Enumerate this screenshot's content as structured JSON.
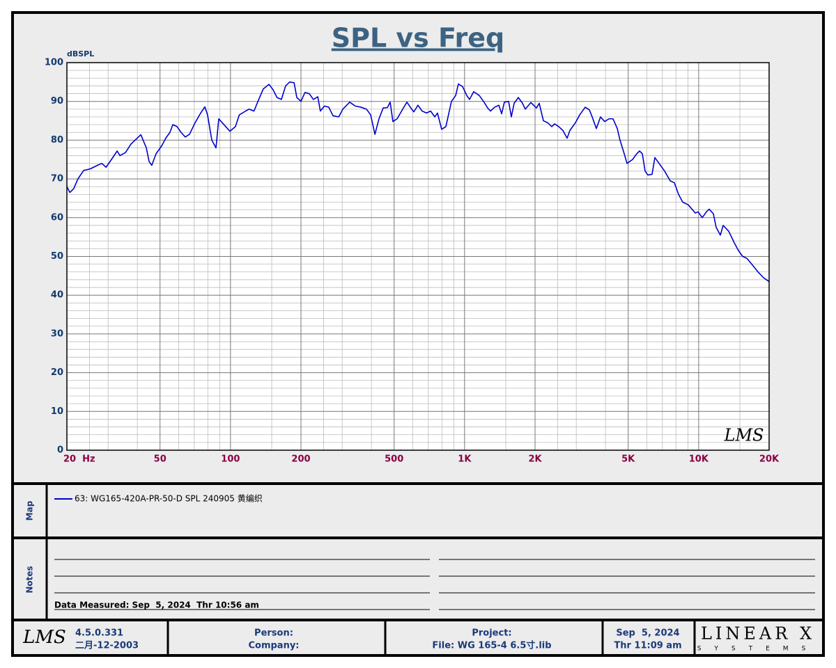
{
  "chart_data": {
    "type": "line",
    "title": "SPL vs Freq",
    "y_unit": "dBSPL",
    "watermark": "LMS",
    "xscale": "log",
    "xlim": [
      20,
      20000
    ],
    "ylim": [
      0,
      100
    ],
    "grid": true,
    "xticks": [
      {
        "value": 20,
        "label": "20  Hz"
      },
      50,
      100,
      200,
      500,
      {
        "value": 1000,
        "label": "1K"
      },
      {
        "value": 2000,
        "label": "2K"
      },
      {
        "value": 5000,
        "label": "5K"
      },
      {
        "value": 10000,
        "label": "10K"
      },
      {
        "value": 20000,
        "label": "20K"
      }
    ],
    "yticks": [
      0,
      10,
      20,
      30,
      40,
      50,
      60,
      70,
      80,
      90,
      100
    ],
    "x_minor_grid": [
      25,
      30,
      40,
      60,
      70,
      80,
      90,
      150,
      250,
      300,
      400,
      600,
      700,
      800,
      900,
      1500,
      2500,
      3000,
      4000,
      6000,
      7000,
      8000,
      9000,
      15000
    ],
    "y_minor_grid": [
      2,
      4,
      6,
      8,
      12,
      14,
      16,
      18,
      22,
      24,
      26,
      28,
      32,
      34,
      36,
      38,
      42,
      44,
      46,
      48,
      52,
      54,
      56,
      58,
      62,
      64,
      66,
      68,
      72,
      74,
      76,
      78,
      82,
      84,
      86,
      88,
      92,
      94,
      96,
      98
    ],
    "x": [
      20,
      20.6,
      21.4,
      22.3,
      23.6,
      25.2,
      27.0,
      28.2,
      29.4,
      31.0,
      32.8,
      33.7,
      35.6,
      37.6,
      39.1,
      41.4,
      43.7,
      44.9,
      46.1,
      48.1,
      50.8,
      52.9,
      55.1,
      56.7,
      59.1,
      61.5,
      64.1,
      66.8,
      70.6,
      74.6,
      77.7,
      79.8,
      83.2,
      86.7,
      89.1,
      92.8,
      99.4,
      105,
      109,
      116,
      120,
      126,
      131,
      138,
      146,
      152,
      158,
      165,
      172,
      179,
      187,
      192,
      200,
      208,
      217,
      226,
      236,
      242,
      252,
      263,
      274,
      290,
      302,
      323,
      341,
      361,
      381,
      397,
      414,
      431,
      449,
      468,
      481,
      494,
      515,
      544,
      567,
      591,
      607,
      632,
      659,
      687,
      716,
      746,
      766,
      798,
      832,
      879,
      916,
      941,
      981,
      1022,
      1050,
      1094,
      1156,
      1205,
      1255,
      1290,
      1344,
      1401,
      1440,
      1479,
      1542,
      1584,
      1628,
      1697,
      1768,
      1817,
      1920,
      2028,
      2084,
      2172,
      2263,
      2358,
      2424,
      2524,
      2630,
      2742,
      2818,
      2976,
      3102,
      3276,
      3414,
      3508,
      3656,
      3808,
      3968,
      4136,
      4308,
      4490,
      4614,
      4808,
      4942,
      5220,
      5440,
      5590,
      5746,
      5906,
      6070,
      6324,
      6500,
      6774,
      7156,
      7558,
      7876,
      8206,
      8550,
      9034,
      9674,
      9942,
      10360,
      10794,
      11094,
      11560,
      11880,
      12380,
      12724,
      13440,
      14200,
      14794,
      15416,
      16062,
      16968,
      17924,
      18934,
      20000
    ],
    "series": [
      {
        "name": "63: WG165-420A-PR-50-D SPL 240905 黄编织",
        "color": "#0000cc",
        "values": [
          68,
          66.5,
          67.5,
          70,
          72.2,
          72.6,
          73.5,
          74,
          73,
          75,
          77.2,
          76,
          76.8,
          79,
          80,
          81.4,
          78,
          74.5,
          73.5,
          76.5,
          78.5,
          80.5,
          82,
          84,
          83.5,
          82,
          80.8,
          81.5,
          84.5,
          87,
          88.6,
          86.5,
          80,
          78,
          85.5,
          84.3,
          82.3,
          83.5,
          86.5,
          87.5,
          88,
          87.5,
          90,
          93.2,
          94.4,
          93,
          91,
          90.5,
          94,
          95,
          94.8,
          91,
          90,
          92.3,
          92,
          90.5,
          91.2,
          87.5,
          88.8,
          88.5,
          86.3,
          86,
          88,
          89.8,
          88.8,
          88.5,
          88,
          86.5,
          81.5,
          85.5,
          88.3,
          88.4,
          89.8,
          84.8,
          85.5,
          88,
          89.8,
          88.2,
          87.3,
          89,
          87.5,
          87,
          87.5,
          86,
          87,
          82.8,
          83.5,
          90,
          91.5,
          94.5,
          93.8,
          91.5,
          90.5,
          92.5,
          91.5,
          90,
          88.3,
          87.5,
          88.5,
          89,
          86.8,
          89.8,
          90,
          86,
          89.5,
          91,
          89.5,
          88,
          89.7,
          88.3,
          89.5,
          85,
          84.5,
          83.5,
          84.2,
          83.5,
          82.5,
          80.5,
          82.5,
          84.5,
          86.5,
          88.5,
          87.8,
          86,
          83,
          86,
          84.8,
          85.5,
          85.5,
          83,
          80,
          76.5,
          74,
          75,
          76.5,
          77.2,
          76.5,
          72,
          71,
          71.2,
          75.5,
          74,
          72,
          69.5,
          69,
          66,
          64,
          63.3,
          61.2,
          61.5,
          60,
          61.5,
          62.2,
          61,
          57.5,
          55.5,
          58,
          56.5,
          53.5,
          51.5,
          50,
          49.5,
          47.8,
          46,
          44.5,
          43.5
        ]
      }
    ]
  },
  "panels": {
    "map_label": "Map",
    "notes_label": "Notes",
    "data_measured": "Data Measured: Sep  5, 2024  Thr 10:56 am"
  },
  "footer": {
    "logo": "LMS",
    "version": "4.5.0.331",
    "build_date": "二月-12-2003",
    "person": "Person:",
    "company": "Company:",
    "project": "Project:",
    "file": "File: WG 165-4 6.5寸.lib",
    "date": "Sep  5, 2024",
    "time": "Thr 11:09 am",
    "brand": "LINEAR X",
    "brand_sub": "SYSTEMS"
  }
}
